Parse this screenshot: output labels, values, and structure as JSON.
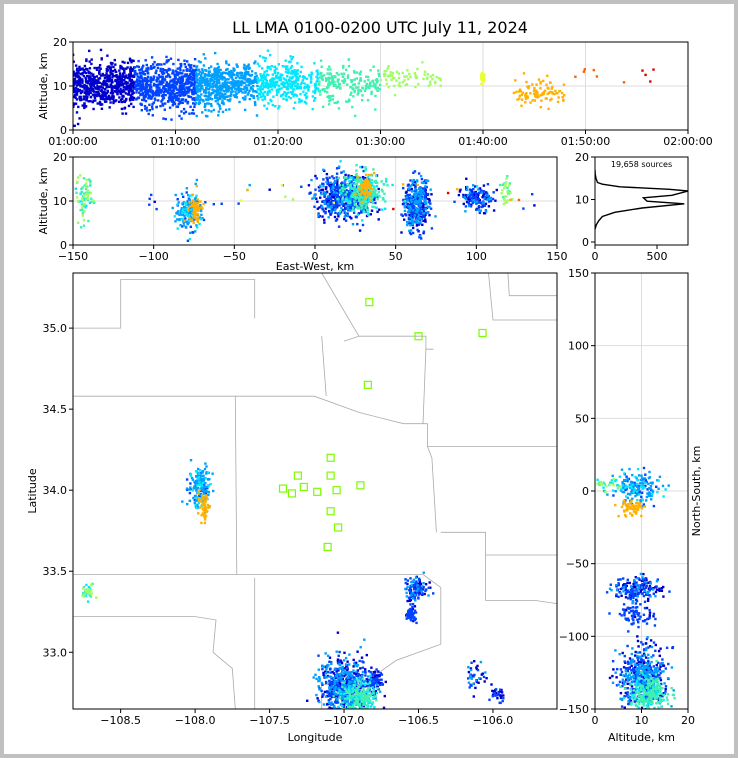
{
  "title": "LL LMA 0100-0200 UTC July 11, 2024",
  "colors": {
    "background": "#ffffff",
    "border": "#c0c0c0",
    "grid": "#dddddd",
    "county_lines": "#aaaaaa",
    "station_marker": "#7cfc00",
    "time_colormap": [
      "#0000cc",
      "#0044ff",
      "#00a0ff",
      "#00e8ff",
      "#40f0b0",
      "#a0ff60",
      "#e8ff30",
      "#ffb000",
      "#ff6000",
      "#e00000"
    ]
  },
  "chart_data": [
    {
      "id": "alt_time",
      "type": "scatter",
      "ylabel": "Altitude, km",
      "xlabel": "",
      "xticks": [
        "01:00:00",
        "01:10:00",
        "01:20:00",
        "01:30:00",
        "01:40:00",
        "01:50:00",
        "02:00:00"
      ],
      "xlim_minutes": [
        0,
        60
      ],
      "ylim": [
        0,
        20
      ],
      "yticks": [
        0,
        10,
        20
      ],
      "grid": true,
      "density": [
        {
          "t": [
            0,
            15
          ],
          "n": 1600,
          "alt_mean": 10,
          "alt_sd": 2.6
        },
        {
          "t": [
            15,
            22
          ],
          "n": 500,
          "alt_mean": 10.5,
          "alt_sd": 2.4
        },
        {
          "t": [
            22,
            30
          ],
          "n": 260,
          "alt_mean": 10.5,
          "alt_sd": 2.2
        },
        {
          "t": [
            30,
            36
          ],
          "n": 70,
          "alt_mean": 12,
          "alt_sd": 1.2
        },
        {
          "t": [
            39.8,
            40.2
          ],
          "n": 30,
          "alt_mean": 12,
          "alt_sd": 1.0
        },
        {
          "t": [
            43,
            48
          ],
          "n": 90,
          "alt_mean": 8.5,
          "alt_sd": 1.6
        },
        {
          "t": [
            48,
            57
          ],
          "n": 10,
          "alt_mean": 13,
          "alt_sd": 1.5
        }
      ]
    },
    {
      "id": "alt_ew",
      "type": "scatter",
      "ylabel": "Altitude, km",
      "xlabel": "East-West, km",
      "xlim": [
        -150,
        150
      ],
      "xticks": [
        -150,
        -100,
        -50,
        0,
        50,
        100,
        150
      ],
      "ylim": [
        0,
        20
      ],
      "yticks": [
        0,
        10,
        20
      ],
      "grid": true,
      "clusters": [
        {
          "x": -143,
          "sx": 2.5,
          "alt": 11,
          "salt": 2.5,
          "n": 70,
          "t": [
            20,
            35
          ]
        },
        {
          "x": -78,
          "sx": 4,
          "alt": 7.5,
          "salt": 2.2,
          "n": 180,
          "t": [
            10,
            20
          ]
        },
        {
          "x": -74,
          "sx": 2,
          "alt": 8,
          "salt": 1.5,
          "n": 70,
          "t": [
            44,
            47
          ]
        },
        {
          "x": -100,
          "sx": 2,
          "alt": 9,
          "salt": 1,
          "n": 5,
          "t": [
            5,
            8
          ]
        },
        {
          "x": 18,
          "sx": 9,
          "alt": 11,
          "salt": 2.5,
          "n": 550,
          "t": [
            0,
            15
          ]
        },
        {
          "x": 30,
          "sx": 6,
          "alt": 12,
          "salt": 2.2,
          "n": 250,
          "t": [
            20,
            30
          ]
        },
        {
          "x": 32,
          "sx": 2.5,
          "alt": 13,
          "salt": 1.5,
          "n": 60,
          "t": [
            43,
            47
          ]
        },
        {
          "x": 63,
          "sx": 4,
          "alt": 9,
          "salt": 3,
          "n": 380,
          "t": [
            0,
            18
          ]
        },
        {
          "x": 100,
          "sx": 5,
          "alt": 10.5,
          "salt": 1.5,
          "n": 140,
          "t": [
            0,
            15
          ]
        },
        {
          "x": 118,
          "sx": 2,
          "alt": 12,
          "salt": 1.5,
          "n": 30,
          "t": [
            28,
            32
          ]
        }
      ]
    },
    {
      "id": "histogram",
      "type": "line",
      "annotation": "19,658 sources",
      "xlim": [
        0,
        750
      ],
      "xticks": [
        0,
        500
      ],
      "ylim": [
        0,
        20
      ],
      "yticks": [
        0,
        10,
        20
      ],
      "profile": [
        [
          0,
          3
        ],
        [
          10,
          4
        ],
        [
          30,
          5
        ],
        [
          60,
          6
        ],
        [
          160,
          7
        ],
        [
          380,
          8
        ],
        [
          720,
          9
        ],
        [
          420,
          9.6
        ],
        [
          390,
          10.4
        ],
        [
          620,
          11
        ],
        [
          750,
          12
        ],
        [
          600,
          12.4
        ],
        [
          200,
          13
        ],
        [
          60,
          13.6
        ],
        [
          20,
          14
        ],
        [
          8,
          15
        ],
        [
          2,
          16
        ],
        [
          0,
          17
        ]
      ]
    },
    {
      "id": "plan_view",
      "type": "scatter",
      "xlabel": "Longitude",
      "ylabel": "Latitude",
      "xlim": [
        -108.82,
        -105.57
      ],
      "ylim": [
        32.65,
        35.34
      ],
      "xticks": [
        -108.5,
        -108.0,
        -107.5,
        -107.0,
        -106.5,
        -106.0
      ],
      "xtick_labels": [
        "−108.5",
        "−108.0",
        "−107.5",
        "−107.0",
        "−106.5",
        "−106.0"
      ],
      "yticks": [
        33.0,
        33.5,
        34.0,
        34.5,
        35.0
      ],
      "ytick_labels": [
        "33.0",
        "33.5",
        "34.0",
        "34.5",
        "35.0"
      ],
      "stations": [
        [
          -106.83,
          35.16
        ],
        [
          -106.5,
          34.95
        ],
        [
          -106.07,
          34.97
        ],
        [
          -106.84,
          34.65
        ],
        [
          -107.09,
          34.2
        ],
        [
          -107.31,
          34.09
        ],
        [
          -107.09,
          34.09
        ],
        [
          -107.41,
          34.01
        ],
        [
          -107.27,
          34.02
        ],
        [
          -107.35,
          33.98
        ],
        [
          -107.18,
          33.99
        ],
        [
          -107.05,
          34.0
        ],
        [
          -106.89,
          34.03
        ],
        [
          -107.09,
          33.87
        ],
        [
          -107.04,
          33.77
        ],
        [
          -107.11,
          33.65
        ]
      ],
      "county_lines": [
        [
          [
            -108.82,
            35.0
          ],
          [
            -108.5,
            35.0
          ],
          [
            -108.5,
            35.3
          ],
          [
            -107.6,
            35.3
          ],
          [
            -107.6,
            35.06
          ]
        ],
        [
          [
            -108.82,
            34.58
          ],
          [
            -107.73,
            34.58
          ],
          [
            -107.2,
            34.58
          ],
          [
            -106.9,
            34.48
          ],
          [
            -106.6,
            34.41
          ]
        ],
        [
          [
            -107.73,
            34.58
          ],
          [
            -107.72,
            33.48
          ],
          [
            -108.82,
            33.48
          ]
        ],
        [
          [
            -107.72,
            33.48
          ],
          [
            -106.47,
            33.48
          ],
          [
            -106.35,
            33.4
          ]
        ],
        [
          [
            -108.82,
            33.22
          ],
          [
            -108.0,
            33.22
          ],
          [
            -107.86,
            33.2
          ],
          [
            -107.88,
            33.0
          ],
          [
            -107.75,
            32.9
          ],
          [
            -107.73,
            32.65
          ]
        ],
        [
          [
            -107.6,
            33.46
          ],
          [
            -107.6,
            32.65
          ]
        ],
        [
          [
            -106.35,
            33.4
          ],
          [
            -106.35,
            33.05
          ],
          [
            -106.65,
            32.95
          ],
          [
            -106.88,
            32.8
          ]
        ],
        [
          [
            -106.35,
            33.74
          ],
          [
            -106.05,
            33.74
          ],
          [
            -106.05,
            33.6
          ],
          [
            -105.57,
            33.6
          ]
        ],
        [
          [
            -106.05,
            33.6
          ],
          [
            -106.05,
            33.32
          ],
          [
            -105.72,
            33.32
          ],
          [
            -105.57,
            33.3
          ]
        ],
        [
          [
            -107.15,
            35.34
          ],
          [
            -106.9,
            34.95
          ],
          [
            -106.45,
            34.95
          ],
          [
            -106.45,
            34.87
          ],
          [
            -106.4,
            34.87
          ]
        ],
        [
          [
            -106.45,
            34.87
          ],
          [
            -106.47,
            34.41
          ],
          [
            -106.6,
            34.41
          ]
        ],
        [
          [
            -106.47,
            34.41
          ],
          [
            -106.44,
            34.41
          ],
          [
            -106.44,
            34.27
          ],
          [
            -105.57,
            34.27
          ]
        ],
        [
          [
            -106.44,
            34.27
          ],
          [
            -106.41,
            34.2
          ],
          [
            -106.38,
            33.74
          ]
        ],
        [
          [
            -106.03,
            35.34
          ],
          [
            -106.0,
            35.05
          ],
          [
            -105.57,
            35.05
          ]
        ],
        [
          [
            -105.9,
            35.34
          ],
          [
            -105.89,
            35.2
          ],
          [
            -105.57,
            35.2
          ]
        ],
        [
          [
            -107.15,
            34.95
          ],
          [
            -107.12,
            34.58
          ]
        ],
        [
          [
            -107.0,
            34.92
          ],
          [
            -106.9,
            34.95
          ]
        ],
        [
          [
            -107.15,
            32.8
          ],
          [
            -106.88,
            32.8
          ]
        ],
        [
          [
            -107.15,
            32.8
          ],
          [
            -107.15,
            32.65
          ]
        ]
      ],
      "clusters": [
        {
          "lon": -107.97,
          "slon": 0.035,
          "lat": 34.02,
          "slat": 0.06,
          "n": 180,
          "t": [
            10,
            20
          ]
        },
        {
          "lon": -107.94,
          "slon": 0.02,
          "lat": 33.9,
          "slat": 0.04,
          "n": 50,
          "t": [
            44,
            47
          ]
        },
        {
          "lon": -108.72,
          "slon": 0.02,
          "lat": 33.38,
          "slat": 0.02,
          "n": 40,
          "t": [
            20,
            35
          ]
        },
        {
          "lon": -106.52,
          "slon": 0.04,
          "lat": 33.39,
          "slat": 0.04,
          "n": 120,
          "t": [
            0,
            15
          ]
        },
        {
          "lon": -106.55,
          "slon": 0.02,
          "lat": 33.23,
          "slat": 0.02,
          "n": 50,
          "t": [
            5,
            12
          ]
        },
        {
          "lon": -106.13,
          "slon": 0.03,
          "lat": 32.85,
          "slat": 0.05,
          "n": 40,
          "t": [
            0,
            15
          ]
        },
        {
          "lon": -105.97,
          "slon": 0.02,
          "lat": 32.73,
          "slat": 0.02,
          "n": 30,
          "t": [
            0,
            10
          ]
        },
        {
          "lon": -106.99,
          "slon": 0.09,
          "lat": 32.78,
          "slat": 0.09,
          "n": 650,
          "t": [
            0,
            18
          ]
        },
        {
          "lon": -106.9,
          "slon": 0.06,
          "lat": 32.72,
          "slat": 0.05,
          "n": 200,
          "t": [
            20,
            30
          ]
        },
        {
          "lon": -106.79,
          "slon": 0.025,
          "lat": 32.82,
          "slat": 0.03,
          "n": 60,
          "t": [
            0,
            12
          ]
        }
      ]
    },
    {
      "id": "alt_ns",
      "type": "scatter",
      "xlabel": "Altitude, km",
      "ylabel": "North-South, km",
      "xlim": [
        0,
        20
      ],
      "xticks": [
        0,
        10,
        20
      ],
      "ylim": [
        -150,
        150
      ],
      "yticks": [
        -150,
        -100,
        -50,
        0,
        50,
        100,
        150
      ],
      "grid": true,
      "clusters": [
        {
          "alt": 9,
          "salt": 2.5,
          "y": 2,
          "sy": 5,
          "n": 180,
          "t": [
            10,
            20
          ]
        },
        {
          "alt": 8,
          "salt": 1.5,
          "y": -12,
          "sy": 3,
          "n": 60,
          "t": [
            44,
            47
          ]
        },
        {
          "alt": 9,
          "salt": 2.5,
          "y": -67,
          "sy": 4,
          "n": 180,
          "t": [
            0,
            15
          ]
        },
        {
          "alt": 9,
          "salt": 2,
          "y": -85,
          "sy": 4,
          "n": 70,
          "t": [
            5,
            12
          ]
        },
        {
          "alt": 10.5,
          "salt": 2.5,
          "y": -128,
          "sy": 10,
          "n": 500,
          "t": [
            0,
            18
          ]
        },
        {
          "alt": 11.5,
          "salt": 2,
          "y": -140,
          "sy": 6,
          "n": 250,
          "t": [
            20,
            30
          ]
        },
        {
          "alt": 3,
          "salt": 1.5,
          "y": 5,
          "sy": 3,
          "n": 25,
          "t": [
            20,
            35
          ]
        }
      ]
    }
  ]
}
